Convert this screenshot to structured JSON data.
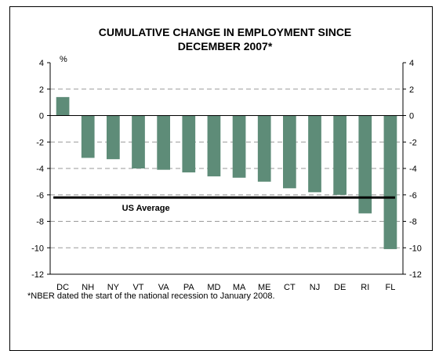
{
  "chart_data": {
    "type": "bar",
    "title_line1": "CUMULATIVE CHANGE IN EMPLOYMENT SINCE",
    "title_line2": "DECEMBER 2007*",
    "unit_label": "%",
    "categories": [
      "DC",
      "NH",
      "NY",
      "VT",
      "VA",
      "PA",
      "MD",
      "MA",
      "ME",
      "CT",
      "NJ",
      "DE",
      "RI",
      "FL"
    ],
    "values": [
      1.4,
      -3.2,
      -3.3,
      -4.0,
      -4.1,
      -4.3,
      -4.6,
      -4.7,
      -5.0,
      -5.5,
      -5.8,
      -6.0,
      -7.4,
      -10.1
    ],
    "ylim": [
      -12,
      4
    ],
    "yticks": [
      4,
      2,
      0,
      -2,
      -4,
      -6,
      -8,
      -10,
      -12
    ],
    "grid": "dashed horizontal",
    "bar_color": "#5e8c78",
    "reference_line": {
      "label": "US Average",
      "value": -6.2
    },
    "footnote": "*NBER dated the start of the national recession to January 2008."
  }
}
